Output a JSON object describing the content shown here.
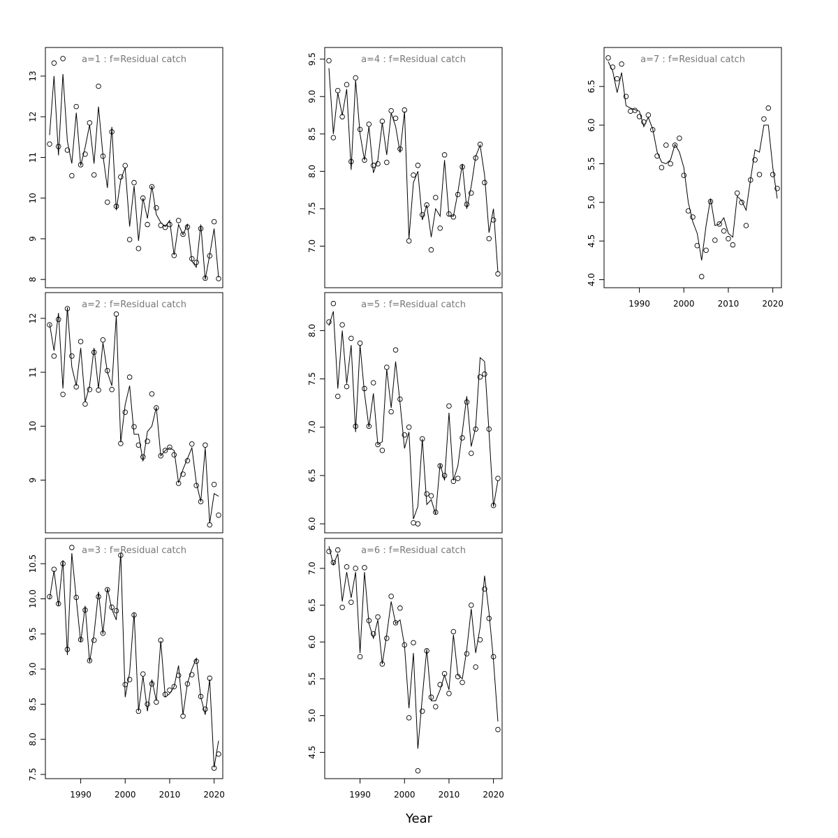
{
  "xlabel": "Year",
  "colors": {
    "line": "#000000",
    "points": "#000000",
    "title": "#777777",
    "frame": "#000000"
  },
  "chart_data": [
    {
      "type": "line",
      "title": "a=1  :  f=Residual catch",
      "xlim": [
        1983,
        2021
      ],
      "ylim": [
        7.9,
        13.6
      ],
      "yticks": [
        8,
        9,
        10,
        11,
        12,
        13
      ],
      "xticks": [],
      "x": [
        1983,
        1984,
        1985,
        1986,
        1987,
        1988,
        1989,
        1990,
        1991,
        1992,
        1993,
        1994,
        1995,
        1996,
        1997,
        1998,
        1999,
        2000,
        2001,
        2002,
        2003,
        2004,
        2005,
        2006,
        2007,
        2008,
        2009,
        2010,
        2011,
        2012,
        2013,
        2014,
        2015,
        2016,
        2017,
        2018,
        2019,
        2020,
        2021
      ],
      "series": [
        {
          "style": "points",
          "values": [
            11.33,
            13.32,
            11.27,
            13.43,
            11.18,
            10.55,
            12.25,
            10.82,
            11.08,
            11.85,
            10.57,
            12.75,
            11.03,
            9.9,
            11.63,
            9.8,
            10.52,
            10.8,
            8.98,
            10.38,
            8.76,
            10.0,
            9.35,
            10.28,
            9.76,
            9.33,
            9.28,
            9.35,
            8.59,
            9.45,
            9.11,
            9.29,
            8.51,
            8.42,
            9.25,
            8.03,
            8.58,
            9.42,
            8.02
          ]
        },
        {
          "style": "line",
          "values": [
            11.55,
            13.0,
            11.05,
            13.05,
            11.4,
            10.85,
            12.1,
            10.8,
            11.25,
            11.8,
            10.85,
            12.25,
            11.05,
            10.25,
            11.75,
            9.7,
            10.45,
            10.75,
            9.3,
            10.3,
            8.95,
            10.0,
            9.5,
            10.3,
            9.6,
            9.4,
            9.3,
            9.45,
            8.6,
            9.35,
            9.1,
            9.35,
            8.45,
            8.3,
            9.35,
            8.0,
            8.6,
            9.25,
            8.05
          ]
        }
      ]
    },
    {
      "type": "line",
      "title": "a=4  :  f=Residual catch",
      "xlim": [
        1983,
        2021
      ],
      "ylim": [
        6.5,
        9.6
      ],
      "yticks": [
        7.0,
        7.5,
        8.0,
        8.5,
        9.0,
        9.5
      ],
      "xticks": [],
      "x": [
        1983,
        1984,
        1985,
        1986,
        1987,
        1988,
        1989,
        1990,
        1991,
        1992,
        1993,
        1994,
        1995,
        1996,
        1997,
        1998,
        1999,
        2000,
        2001,
        2002,
        2003,
        2004,
        2005,
        2006,
        2007,
        2008,
        2009,
        2010,
        2011,
        2012,
        2013,
        2014,
        2015,
        2016,
        2017,
        2018,
        2019,
        2020,
        2021
      ],
      "series": [
        {
          "style": "points",
          "values": [
            9.48,
            8.45,
            9.08,
            8.73,
            9.16,
            8.13,
            9.25,
            8.56,
            8.15,
            8.63,
            8.08,
            8.1,
            8.67,
            8.12,
            8.81,
            8.71,
            8.3,
            8.82,
            7.07,
            7.95,
            8.08,
            7.42,
            7.55,
            6.95,
            7.65,
            7.24,
            8.22,
            7.43,
            7.39,
            7.69,
            8.06,
            7.56,
            7.71,
            8.18,
            8.36,
            7.85,
            7.1,
            7.35,
            6.63
          ]
        },
        {
          "style": "line",
          "values": [
            9.38,
            8.5,
            9.05,
            8.75,
            9.1,
            8.02,
            9.22,
            8.5,
            8.15,
            8.6,
            7.98,
            8.15,
            8.65,
            8.22,
            8.78,
            8.6,
            8.25,
            8.8,
            7.1,
            7.85,
            8.0,
            7.35,
            7.55,
            7.12,
            7.5,
            7.4,
            8.15,
            7.4,
            7.4,
            7.72,
            8.1,
            7.5,
            7.8,
            8.2,
            8.35,
            7.95,
            7.18,
            7.5,
            6.65
          ]
        }
      ]
    },
    {
      "type": "line",
      "title": "a=7  :  f=Residual catch",
      "xlim": [
        1983,
        2021
      ],
      "ylim": [
        3.95,
        6.95
      ],
      "yticks": [
        4.0,
        4.5,
        5.0,
        5.5,
        6.0,
        6.5
      ],
      "xticks": [
        1990,
        2000,
        2010,
        2020
      ],
      "x": [
        1983,
        1984,
        1985,
        1986,
        1987,
        1988,
        1989,
        1990,
        1991,
        1992,
        1993,
        1994,
        1995,
        1996,
        1997,
        1998,
        1999,
        2000,
        2001,
        2002,
        2003,
        2004,
        2005,
        2006,
        2007,
        2008,
        2009,
        2010,
        2011,
        2012,
        2013,
        2014,
        2015,
        2016,
        2017,
        2018,
        2019,
        2020,
        2021
      ],
      "series": [
        {
          "style": "points",
          "values": [
            6.87,
            6.75,
            6.6,
            6.79,
            6.37,
            6.18,
            6.19,
            6.11,
            6.04,
            6.13,
            5.94,
            5.6,
            5.45,
            5.74,
            5.5,
            5.74,
            5.83,
            5.35,
            4.89,
            4.81,
            4.44,
            4.04,
            4.38,
            5.01,
            4.51,
            4.72,
            4.63,
            4.53,
            4.45,
            5.12,
            5.0,
            4.7,
            5.29,
            5.55,
            5.36,
            6.08,
            6.22,
            5.36,
            5.18
          ]
        },
        {
          "style": "line",
          "values": [
            6.82,
            6.7,
            6.42,
            6.68,
            6.25,
            6.22,
            6.2,
            6.18,
            5.98,
            6.1,
            5.95,
            5.65,
            5.52,
            5.5,
            5.55,
            5.75,
            5.65,
            5.45,
            5.0,
            4.75,
            4.6,
            4.25,
            4.7,
            5.05,
            4.7,
            4.72,
            4.8,
            4.6,
            4.55,
            5.08,
            5.02,
            4.9,
            5.3,
            5.68,
            5.65,
            6.0,
            6.0,
            5.45,
            5.05
          ]
        }
      ]
    },
    {
      "type": "line",
      "title": "a=2  :  f=Residual catch",
      "xlim": [
        1983,
        2021
      ],
      "ylim": [
        8.1,
        12.4
      ],
      "yticks": [
        9,
        10,
        11,
        12
      ],
      "xticks": [],
      "x": [
        1983,
        1984,
        1985,
        1986,
        1987,
        1988,
        1989,
        1990,
        1991,
        1992,
        1993,
        1994,
        1995,
        1996,
        1997,
        1998,
        1999,
        2000,
        2001,
        2002,
        2003,
        2004,
        2005,
        2006,
        2007,
        2008,
        2009,
        2010,
        2011,
        2012,
        2013,
        2014,
        2015,
        2016,
        2017,
        2018,
        2019,
        2020,
        2021
      ],
      "series": [
        {
          "style": "points",
          "values": [
            11.88,
            11.3,
            11.98,
            10.59,
            12.18,
            11.3,
            10.73,
            11.57,
            10.41,
            10.68,
            11.37,
            10.67,
            11.6,
            11.03,
            10.68,
            12.08,
            9.68,
            10.26,
            10.91,
            9.99,
            9.65,
            9.43,
            9.72,
            10.6,
            10.34,
            9.45,
            9.55,
            9.61,
            9.47,
            8.94,
            9.11,
            9.36,
            9.67,
            8.9,
            8.6,
            9.65,
            8.17,
            8.92,
            8.35
          ]
        },
        {
          "style": "line",
          "values": [
            11.9,
            11.4,
            12.1,
            10.7,
            12.2,
            11.1,
            10.75,
            11.45,
            10.45,
            10.75,
            11.45,
            10.7,
            11.55,
            11.0,
            10.75,
            12.05,
            9.7,
            10.4,
            10.75,
            9.85,
            9.85,
            9.35,
            9.9,
            10.0,
            10.35,
            9.45,
            9.55,
            9.6,
            9.55,
            8.95,
            9.2,
            9.4,
            9.6,
            8.95,
            8.6,
            9.6,
            8.2,
            8.75,
            8.7
          ]
        }
      ]
    },
    {
      "type": "line",
      "title": "a=5  :  f=Residual catch",
      "xlim": [
        1983,
        2021
      ],
      "ylim": [
        5.95,
        8.35
      ],
      "yticks": [
        6.0,
        6.5,
        7.0,
        7.5,
        8.0
      ],
      "xticks": [],
      "x": [
        1983,
        1984,
        1985,
        1986,
        1987,
        1988,
        1989,
        1990,
        1991,
        1992,
        1993,
        1994,
        1995,
        1996,
        1997,
        1998,
        1999,
        2000,
        2001,
        2002,
        2003,
        2004,
        2005,
        2006,
        2007,
        2008,
        2009,
        2010,
        2011,
        2012,
        2013,
        2014,
        2015,
        2016,
        2017,
        2018,
        2019,
        2020,
        2021
      ],
      "series": [
        {
          "style": "points",
          "values": [
            8.09,
            8.28,
            7.32,
            8.06,
            7.42,
            7.92,
            7.01,
            7.87,
            7.4,
            7.01,
            7.46,
            6.82,
            6.76,
            7.62,
            7.16,
            7.8,
            7.29,
            6.92,
            7.0,
            6.01,
            6.0,
            6.88,
            6.31,
            6.29,
            6.12,
            6.6,
            6.5,
            7.22,
            6.44,
            6.47,
            6.89,
            7.26,
            6.73,
            6.98,
            7.52,
            7.55,
            6.98,
            6.19,
            6.47
          ]
        },
        {
          "style": "line",
          "values": [
            8.05,
            8.2,
            7.4,
            8.0,
            7.45,
            7.85,
            6.95,
            7.85,
            7.35,
            7.0,
            7.35,
            6.82,
            6.85,
            7.6,
            7.2,
            7.68,
            7.25,
            6.78,
            6.95,
            6.05,
            6.18,
            6.88,
            6.2,
            6.25,
            6.1,
            6.62,
            6.45,
            7.15,
            6.45,
            6.6,
            6.95,
            7.32,
            6.8,
            7.0,
            7.72,
            7.68,
            6.95,
            6.18,
            6.45
          ]
        }
      ]
    },
    {
      "type": "line",
      "title": "a=3  :  f=Residual catch",
      "xlim": [
        1983,
        2021
      ],
      "ylim": [
        7.5,
        10.8
      ],
      "yticks": [
        7.5,
        8.0,
        8.5,
        9.0,
        9.5,
        10.0,
        10.5
      ],
      "xticks": [
        1990,
        2000,
        2010,
        2020
      ],
      "x": [
        1983,
        1984,
        1985,
        1986,
        1987,
        1988,
        1989,
        1990,
        1991,
        1992,
        1993,
        1994,
        1995,
        1996,
        1997,
        1998,
        1999,
        2000,
        2001,
        2002,
        2003,
        2004,
        2005,
        2006,
        2007,
        2008,
        2009,
        2010,
        2011,
        2012,
        2013,
        2014,
        2015,
        2016,
        2017,
        2018,
        2019,
        2020,
        2021
      ],
      "series": [
        {
          "style": "points",
          "values": [
            10.03,
            10.42,
            9.93,
            10.5,
            9.28,
            10.73,
            10.02,
            9.42,
            9.84,
            9.12,
            9.41,
            10.03,
            9.51,
            10.13,
            9.88,
            9.83,
            10.62,
            8.78,
            8.85,
            9.77,
            8.4,
            8.93,
            8.5,
            8.79,
            8.53,
            9.41,
            8.64,
            8.7,
            8.75,
            8.91,
            8.33,
            8.79,
            8.92,
            9.11,
            8.61,
            8.43,
            8.87,
            7.59,
            7.79
          ]
        },
        {
          "style": "line",
          "values": [
            10.0,
            10.4,
            9.9,
            10.55,
            9.2,
            10.65,
            10.0,
            9.38,
            9.9,
            9.1,
            9.5,
            10.1,
            9.5,
            10.15,
            9.85,
            9.7,
            10.65,
            8.6,
            8.95,
            9.8,
            8.4,
            8.9,
            8.4,
            8.85,
            8.55,
            9.4,
            8.6,
            8.65,
            8.75,
            9.05,
            8.35,
            8.8,
            9.0,
            9.15,
            8.6,
            8.35,
            8.85,
            7.6,
            7.98
          ]
        }
      ]
    },
    {
      "type": "line",
      "title": "a=6  :  f=Residual catch",
      "xlim": [
        1983,
        2021
      ],
      "ylim": [
        4.2,
        7.35
      ],
      "yticks": [
        4.5,
        5.0,
        5.5,
        6.0,
        6.5,
        7.0
      ],
      "xticks": [
        1990,
        2000,
        2010,
        2020
      ],
      "x": [
        1983,
        1984,
        1985,
        1986,
        1987,
        1988,
        1989,
        1990,
        1991,
        1992,
        1993,
        1994,
        1995,
        1996,
        1997,
        1998,
        1999,
        2000,
        2001,
        2002,
        2003,
        2004,
        2005,
        2006,
        2007,
        2008,
        2009,
        2010,
        2011,
        2012,
        2013,
        2014,
        2015,
        2016,
        2017,
        2018,
        2019,
        2020,
        2021
      ],
      "series": [
        {
          "style": "points",
          "values": [
            7.23,
            7.08,
            7.25,
            6.47,
            7.02,
            6.54,
            7.0,
            5.8,
            7.01,
            6.29,
            6.11,
            6.34,
            5.7,
            6.05,
            6.62,
            6.26,
            6.46,
            5.96,
            4.97,
            5.99,
            4.25,
            5.06,
            5.88,
            5.25,
            5.12,
            5.42,
            5.57,
            5.3,
            6.14,
            5.53,
            5.45,
            5.84,
            6.5,
            5.66,
            6.03,
            6.72,
            6.32,
            5.8,
            4.81
          ]
        },
        {
          "style": "line",
          "values": [
            7.3,
            7.05,
            7.2,
            6.55,
            6.95,
            6.6,
            6.95,
            5.85,
            6.95,
            6.25,
            6.05,
            6.3,
            5.7,
            6.1,
            6.55,
            6.25,
            6.3,
            5.95,
            5.1,
            5.85,
            4.55,
            5.25,
            5.9,
            5.2,
            5.2,
            5.35,
            5.55,
            5.35,
            6.1,
            5.55,
            5.5,
            5.9,
            6.45,
            5.85,
            6.2,
            6.9,
            6.4,
            5.75,
            4.92
          ]
        }
      ]
    }
  ]
}
